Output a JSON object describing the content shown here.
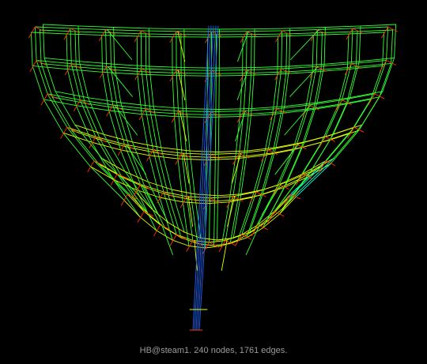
{
  "caption": "HB@steam1. 240 nodes, 1761 edges.",
  "colors": {
    "background": "#000000",
    "caption_text": "#9a9a9a",
    "short_edge": "#ff3300",
    "edge_yellow": "#e6ff00",
    "edge_green": "#33ff33",
    "edge_cyan": "#00ffdd",
    "long_edge": "#1a66ff"
  },
  "graph": {
    "name": "HB@steam1",
    "nodes": 240,
    "edges": 1761,
    "edge_color_scale": "edge length (short = yellow/red, long = blue)"
  }
}
